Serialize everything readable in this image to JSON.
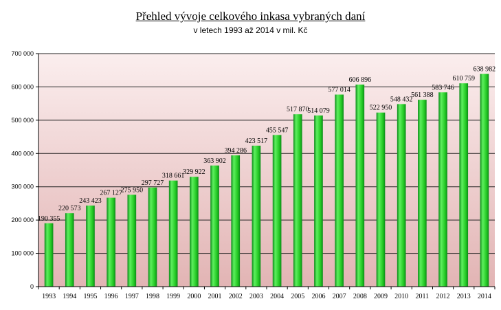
{
  "chart_data": {
    "type": "bar",
    "title": "Přehled vývoje celkového inkasa vybraných daní",
    "subtitle": "v letech 1993 až 2014 v mil. Kč",
    "xlabel": "",
    "ylabel": "",
    "ylim": [
      0,
      700000
    ],
    "yticks": [
      0,
      100000,
      200000,
      300000,
      400000,
      500000,
      600000,
      700000
    ],
    "ytick_labels": [
      "0",
      "100 000",
      "200 000",
      "300 000",
      "400 000",
      "500 000",
      "600 000",
      "700 000"
    ],
    "grid": true,
    "categories": [
      "1993",
      "1994",
      "1995",
      "1996",
      "1997",
      "1998",
      "1999",
      "2000",
      "2001",
      "2002",
      "2003",
      "2004",
      "2005",
      "2006",
      "2007",
      "2008",
      "2009",
      "2010",
      "2011",
      "2012",
      "2013",
      "2014"
    ],
    "values": [
      190355,
      220573,
      243423,
      267127,
      275950,
      297727,
      318661,
      329922,
      363902,
      394286,
      423517,
      455547,
      517870,
      514079,
      577014,
      606896,
      522950,
      548432,
      561388,
      583746,
      610759,
      638982
    ],
    "value_labels": [
      "190 355",
      "220 573",
      "243 423",
      "267 127",
      "275 950",
      "297 727",
      "318 661",
      "329 922",
      "363 902",
      "394 286",
      "423 517",
      "455 547",
      "517 870",
      "514 079",
      "577 014",
      "606 896",
      "522 950",
      "548 432",
      "561 388",
      "583 746",
      "610 759",
      "638 982"
    ],
    "colors": {
      "bar_light": "#5ef05e",
      "bar_mid": "#22c722",
      "bar_dark": "#0d8a1a",
      "plot_bg_top": "#fbeeee",
      "plot_bg_bottom": "#e2b4b4",
      "grid": "#222222"
    }
  }
}
